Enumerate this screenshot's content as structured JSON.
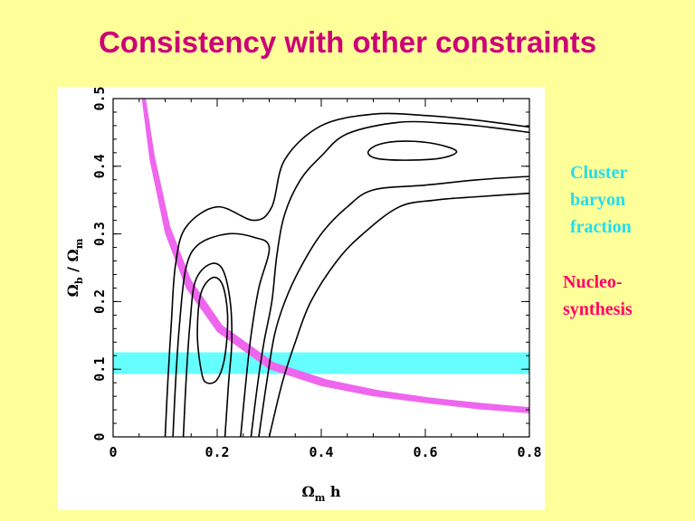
{
  "slide": {
    "title": "Consistency with other constraints",
    "background_color": "#ffff99",
    "title_color": "#cc0077"
  },
  "labels": {
    "cluster": [
      "Cluster",
      "baryon",
      "fraction"
    ],
    "cluster_color": "#22ddee",
    "nucleo": [
      "Nucleo-",
      "synthesis"
    ],
    "nucleo_color": "#ff0066"
  },
  "chart_data": {
    "type": "line",
    "title": "",
    "xlabel": {
      "main": "Ω",
      "sub": "m",
      "after": " h"
    },
    "ylabel": {
      "main1": "Ω",
      "sub1": "b",
      "mid": " / ",
      "main2": "Ω",
      "sub2": "m"
    },
    "xlim": [
      0,
      0.8
    ],
    "ylim": [
      0,
      0.5
    ],
    "x_ticks": [
      0,
      0.2,
      0.4,
      0.6,
      0.8
    ],
    "x_tick_labels": [
      "0",
      "0.2",
      "0.4",
      "0.6",
      "0.8"
    ],
    "y_ticks": [
      0,
      0.1,
      0.2,
      0.3,
      0.4,
      0.5
    ],
    "y_tick_labels": [
      "0",
      "0.1",
      "0.2",
      "0.3",
      "0.4",
      "0.5"
    ],
    "grid": false,
    "bands": [
      {
        "label": "Cluster baryon fraction",
        "type": "horizontal",
        "y": [
          0.093,
          0.125
        ],
        "color": "#66ffff"
      },
      {
        "label": "Nucleosynthesis",
        "type": "curve",
        "color": "#ee66ee",
        "lower": [
          [
            0.055,
            0.5
          ],
          [
            0.07,
            0.41
          ],
          [
            0.1,
            0.3
          ],
          [
            0.14,
            0.22
          ],
          [
            0.2,
            0.155
          ],
          [
            0.3,
            0.1
          ],
          [
            0.4,
            0.075
          ],
          [
            0.5,
            0.06
          ],
          [
            0.6,
            0.05
          ],
          [
            0.7,
            0.041
          ],
          [
            0.8,
            0.035
          ]
        ],
        "upper": [
          [
            0.063,
            0.5
          ],
          [
            0.08,
            0.415
          ],
          [
            0.11,
            0.31
          ],
          [
            0.15,
            0.232
          ],
          [
            0.21,
            0.165
          ],
          [
            0.31,
            0.11
          ],
          [
            0.41,
            0.085
          ],
          [
            0.51,
            0.069
          ],
          [
            0.61,
            0.058
          ],
          [
            0.71,
            0.05
          ],
          [
            0.8,
            0.044
          ]
        ]
      }
    ],
    "contours": [
      {
        "closed": true,
        "points": [
          [
            0.49,
            0.42
          ],
          [
            0.51,
            0.432
          ],
          [
            0.56,
            0.437
          ],
          [
            0.62,
            0.433
          ],
          [
            0.66,
            0.422
          ],
          [
            0.63,
            0.412
          ],
          [
            0.57,
            0.409
          ],
          [
            0.51,
            0.411
          ]
        ]
      },
      {
        "closed": true,
        "points": [
          [
            0.17,
            0.095
          ],
          [
            0.162,
            0.15
          ],
          [
            0.168,
            0.21
          ],
          [
            0.19,
            0.235
          ],
          [
            0.21,
            0.225
          ],
          [
            0.22,
            0.18
          ],
          [
            0.215,
            0.12
          ],
          [
            0.2,
            0.085
          ],
          [
            0.18,
            0.08
          ]
        ]
      },
      {
        "closed": false,
        "points": [
          [
            0.135,
            0.0
          ],
          [
            0.14,
            0.08
          ],
          [
            0.148,
            0.17
          ],
          [
            0.158,
            0.23
          ],
          [
            0.185,
            0.255
          ],
          [
            0.21,
            0.248
          ],
          [
            0.225,
            0.2
          ],
          [
            0.228,
            0.14
          ],
          [
            0.222,
            0.08
          ],
          [
            0.215,
            0.0
          ]
        ]
      },
      {
        "closed": false,
        "points": [
          [
            0.115,
            0.0
          ],
          [
            0.12,
            0.08
          ],
          [
            0.128,
            0.17
          ],
          [
            0.14,
            0.25
          ],
          [
            0.165,
            0.285
          ],
          [
            0.22,
            0.3
          ],
          [
            0.27,
            0.295
          ],
          [
            0.3,
            0.28
          ],
          [
            0.28,
            0.22
          ],
          [
            0.265,
            0.15
          ],
          [
            0.255,
            0.08
          ],
          [
            0.245,
            0.0
          ]
        ]
      },
      {
        "closed": false,
        "points": [
          [
            0.1,
            0.0
          ],
          [
            0.105,
            0.08
          ],
          [
            0.112,
            0.17
          ],
          [
            0.12,
            0.255
          ],
          [
            0.14,
            0.31
          ],
          [
            0.2,
            0.34
          ],
          [
            0.27,
            0.32
          ],
          [
            0.305,
            0.34
          ],
          [
            0.33,
            0.41
          ],
          [
            0.4,
            0.46
          ],
          [
            0.5,
            0.477
          ],
          [
            0.6,
            0.475
          ],
          [
            0.7,
            0.468
          ],
          [
            0.8,
            0.458
          ]
        ]
      },
      {
        "closed": false,
        "points": [
          [
            0.28,
            0.0
          ],
          [
            0.295,
            0.08
          ],
          [
            0.31,
            0.15
          ],
          [
            0.33,
            0.2
          ],
          [
            0.36,
            0.25
          ],
          [
            0.4,
            0.3
          ],
          [
            0.45,
            0.34
          ],
          [
            0.5,
            0.365
          ],
          [
            0.6,
            0.372
          ],
          [
            0.7,
            0.38
          ],
          [
            0.8,
            0.385
          ]
        ]
      },
      {
        "closed": false,
        "points": [
          [
            0.265,
            0.0
          ],
          [
            0.278,
            0.08
          ],
          [
            0.29,
            0.14
          ],
          [
            0.305,
            0.2
          ],
          [
            0.315,
            0.27
          ],
          [
            0.33,
            0.33
          ],
          [
            0.36,
            0.38
          ],
          [
            0.4,
            0.415
          ],
          [
            0.45,
            0.448
          ],
          [
            0.55,
            0.465
          ],
          [
            0.65,
            0.463
          ],
          [
            0.72,
            0.458
          ],
          [
            0.8,
            0.45
          ]
        ]
      },
      {
        "closed": false,
        "points": [
          [
            0.3,
            0.0
          ],
          [
            0.325,
            0.08
          ],
          [
            0.35,
            0.14
          ],
          [
            0.38,
            0.2
          ],
          [
            0.43,
            0.26
          ],
          [
            0.48,
            0.3
          ],
          [
            0.55,
            0.34
          ],
          [
            0.62,
            0.35
          ],
          [
            0.7,
            0.355
          ],
          [
            0.8,
            0.36
          ]
        ]
      }
    ]
  }
}
